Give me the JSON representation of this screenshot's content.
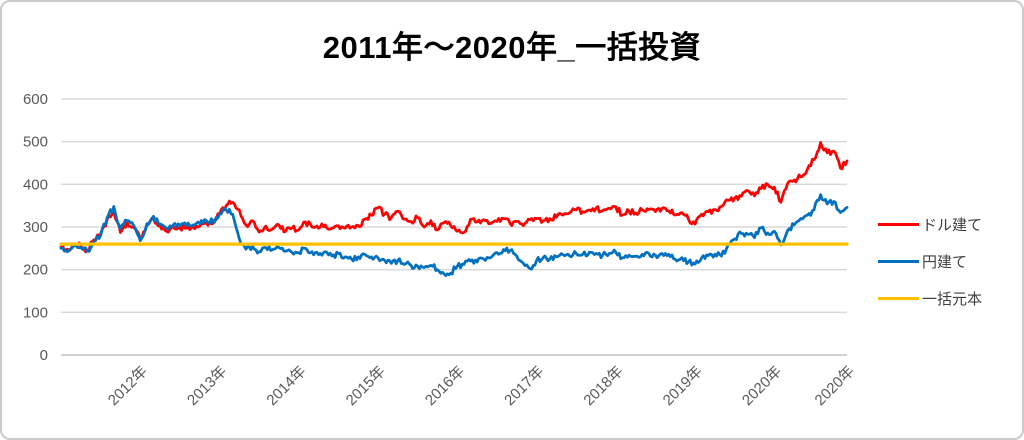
{
  "chart_data": {
    "type": "line",
    "title": "2011年～2020年_一括投資",
    "x_start": "2011-01",
    "x_interval": "monthly",
    "x_tick_month_index": [
      12,
      24,
      36,
      48,
      60,
      72,
      84,
      96,
      108,
      119
    ],
    "x_tick_labels": [
      "2012年",
      "2013年",
      "2014年",
      "2015年",
      "2016年",
      "2017年",
      "2018年",
      "2019年",
      "2020年",
      "2020年"
    ],
    "y_ticks": [
      0,
      100,
      200,
      300,
      400,
      500,
      600
    ],
    "ylim": [
      0,
      600
    ],
    "grid": true,
    "legend_position": "right",
    "series": [
      {
        "name": "ドル建て",
        "color": "#FF0000",
        "values": [
          253,
          248,
          260,
          255,
          245,
          270,
          283,
          318,
          338,
          287,
          310,
          300,
          272,
          305,
          320,
          302,
          290,
          300,
          298,
          297,
          300,
          302,
          310,
          308,
          330,
          350,
          358,
          340,
          305,
          315,
          288,
          302,
          295,
          305,
          290,
          298,
          293,
          312,
          300,
          297,
          305,
          297,
          303,
          297,
          300,
          303,
          318,
          328,
          345,
          330,
          322,
          337,
          318,
          313,
          322,
          300,
          315,
          293,
          310,
          303,
          290,
          287,
          318,
          312,
          317,
          308,
          313,
          320,
          308,
          313,
          303,
          317,
          320,
          315,
          320,
          323,
          328,
          333,
          340,
          336,
          340,
          344,
          338,
          344,
          347,
          328,
          337,
          333,
          340,
          341,
          336,
          344,
          338,
          328,
          334,
          318,
          307,
          330,
          336,
          341,
          348,
          363,
          368,
          372,
          385,
          373,
          390,
          400,
          393,
          358,
          402,
          410,
          418,
          435,
          458,
          498,
          474,
          478,
          438,
          455
        ]
      },
      {
        "name": "円建て",
        "color": "#0070C0",
        "values": [
          250,
          242,
          256,
          252,
          243,
          266,
          280,
          322,
          348,
          295,
          315,
          303,
          268,
          308,
          325,
          307,
          297,
          305,
          303,
          303,
          305,
          308,
          315,
          312,
          330,
          340,
          330,
          272,
          248,
          255,
          242,
          252,
          247,
          252,
          243,
          240,
          240,
          250,
          242,
          235,
          242,
          232,
          238,
          230,
          225,
          230,
          236,
          230,
          228,
          222,
          215,
          222,
          212,
          210,
          208,
          205,
          210,
          200,
          190,
          192,
          208,
          212,
          220,
          218,
          225,
          228,
          240,
          247,
          245,
          232,
          215,
          202,
          222,
          228,
          225,
          230,
          235,
          232,
          238,
          236,
          241,
          238,
          234,
          238,
          241,
          228,
          234,
          231,
          236,
          238,
          234,
          238,
          236,
          224,
          228,
          218,
          213,
          228,
          233,
          236,
          232,
          258,
          272,
          285,
          283,
          275,
          298,
          286,
          290,
          258,
          292,
          305,
          320,
          328,
          340,
          376,
          354,
          360,
          334,
          346
        ]
      },
      {
        "name": "一括元本",
        "color": "#FFC000",
        "constant": 260
      }
    ]
  },
  "colors": {
    "grid": "#D9D9D9",
    "axis_line": "#BFBFBF",
    "axis_labels": "#595959",
    "title": "#000000",
    "legend_text": "#3F3F3F",
    "frame_border": "#CBCBCB"
  }
}
